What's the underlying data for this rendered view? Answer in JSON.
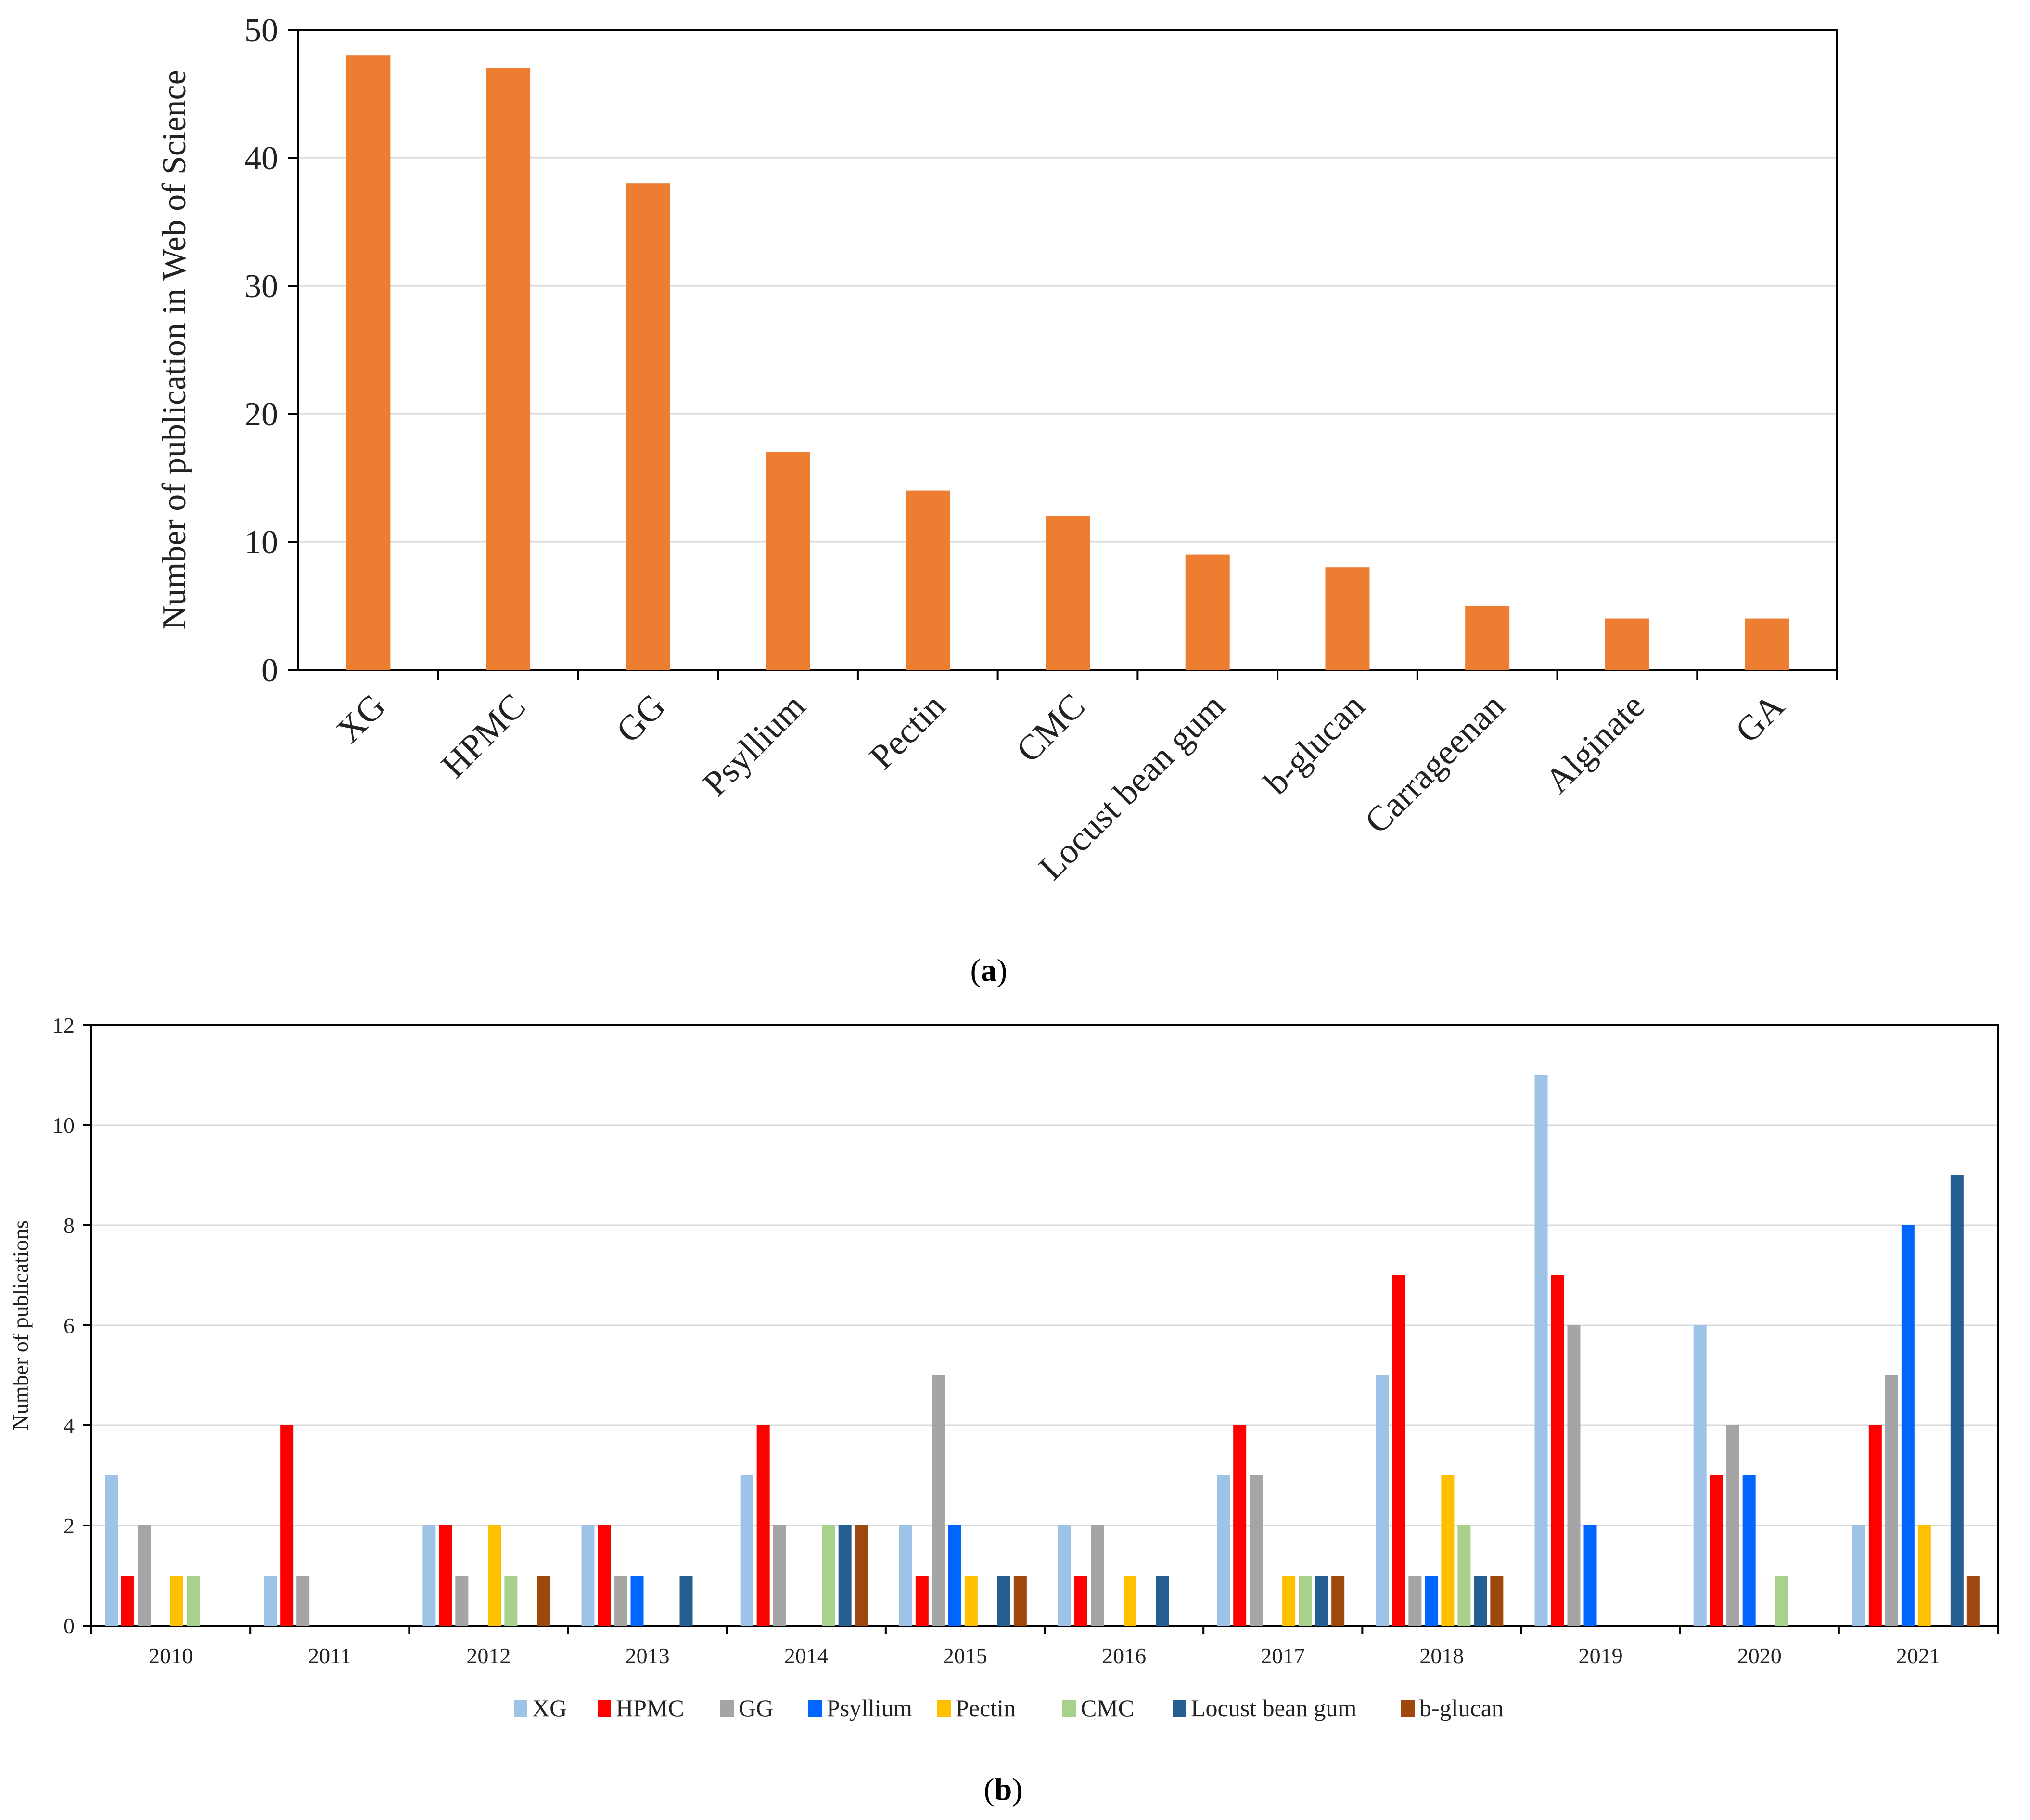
{
  "chart_data": [
    {
      "type": "bar",
      "panel": "a",
      "title": "",
      "xlabel": "",
      "ylabel": "Number of publication in Web of Science",
      "ylim": [
        0,
        50
      ],
      "yticks": [
        0,
        10,
        20,
        30,
        40,
        50
      ],
      "grid": true,
      "bar_color": "#ED7D31",
      "categories": [
        "XG",
        "HPMC",
        "GG",
        "Psyllium",
        "Pectin",
        "CMC",
        "Locust bean gum",
        "b-glucan",
        "Carrageenan",
        "Alginate",
        "GA"
      ],
      "values": [
        48,
        47,
        38,
        17,
        14,
        12,
        9,
        8,
        5,
        4,
        4
      ]
    },
    {
      "type": "bar",
      "panel": "b",
      "title": "",
      "xlabel": "",
      "ylabel": "Number of publications",
      "ylim": [
        0,
        12
      ],
      "yticks": [
        0,
        2,
        4,
        6,
        8,
        10,
        12
      ],
      "grid": true,
      "legend_position": "bottom",
      "categories": [
        "2010",
        "2011",
        "2012",
        "2013",
        "2014",
        "2015",
        "2016",
        "2017",
        "2018",
        "2019",
        "2020",
        "2021"
      ],
      "series": [
        {
          "name": "XG",
          "color": "#9DC3E6",
          "values": [
            3,
            1,
            2,
            2,
            3,
            2,
            2,
            3,
            5,
            11,
            6,
            2
          ]
        },
        {
          "name": "HPMC",
          "color": "#FF0000",
          "values": [
            1,
            4,
            2,
            2,
            4,
            1,
            1,
            4,
            7,
            7,
            3,
            4
          ]
        },
        {
          "name": "GG",
          "color": "#A5A5A5",
          "values": [
            2,
            1,
            1,
            1,
            2,
            5,
            2,
            3,
            1,
            6,
            4,
            5
          ]
        },
        {
          "name": "Psyllium",
          "color": "#0066FF",
          "values": [
            0,
            0,
            0,
            1,
            0,
            2,
            0,
            0,
            1,
            2,
            3,
            8
          ]
        },
        {
          "name": "Pectin",
          "color": "#FFC000",
          "values": [
            1,
            0,
            2,
            0,
            0,
            1,
            1,
            1,
            3,
            0,
            0,
            2
          ]
        },
        {
          "name": "CMC",
          "color": "#A9D18E",
          "values": [
            1,
            0,
            1,
            0,
            2,
            0,
            0,
            1,
            2,
            0,
            1,
            0
          ]
        },
        {
          "name": "Locust bean gum",
          "color": "#255E91",
          "values": [
            0,
            0,
            0,
            1,
            2,
            1,
            1,
            1,
            1,
            0,
            0,
            9
          ]
        },
        {
          "name": "b-glucan",
          "color": "#9E480E",
          "values": [
            0,
            0,
            1,
            0,
            2,
            1,
            0,
            1,
            1,
            0,
            0,
            1
          ]
        }
      ]
    }
  ],
  "captions": {
    "a": "a",
    "b": "b",
    "open": "(",
    "close": ")"
  }
}
